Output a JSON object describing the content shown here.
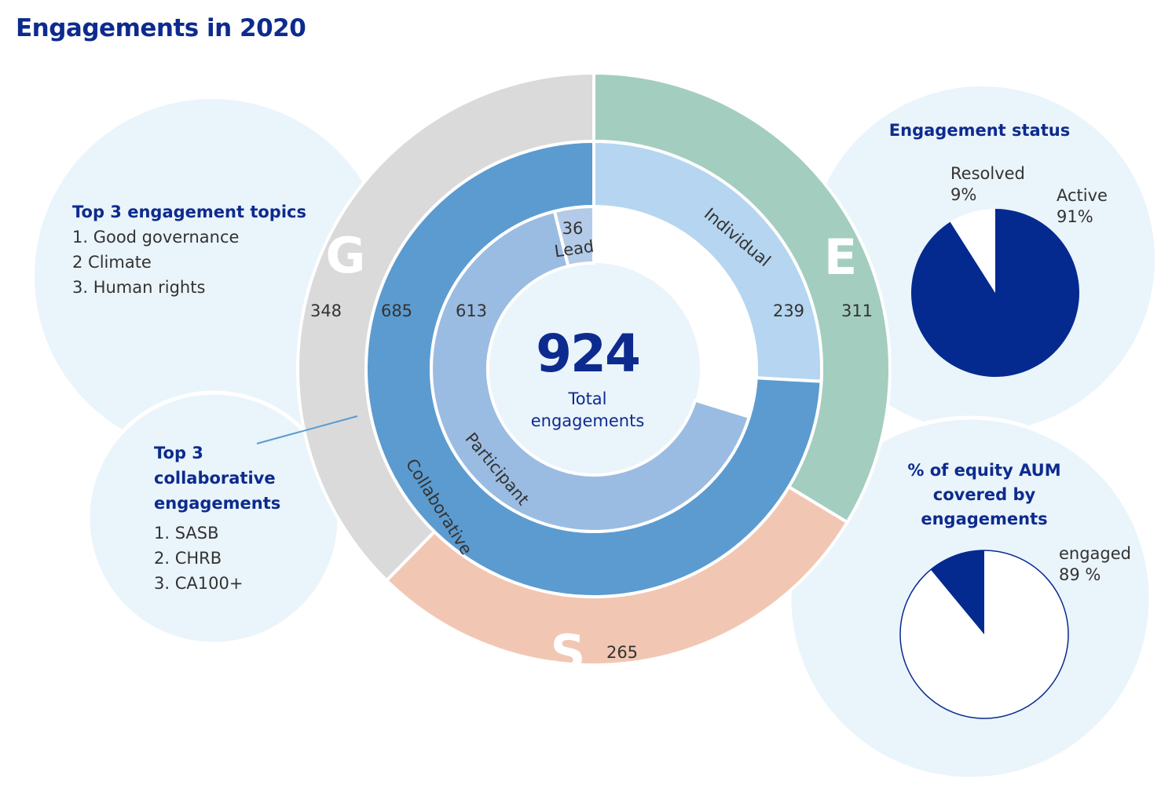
{
  "title": "Engagements in 2020",
  "topics": {
    "title": "Top 3 engagement topics",
    "items": [
      "1. Good governance",
      "2  Climate",
      "3. Human rights"
    ]
  },
  "collaborative": {
    "title": "Top 3 collaborative engagements",
    "items": [
      "1. SASB",
      "2. CHRB",
      "3. CA100+"
    ]
  },
  "chart_data": [
    {
      "type": "sunburst",
      "center_value": 924,
      "center_label": "Total engagements",
      "rings": [
        {
          "direction": "clockwise",
          "categories": [
            "E",
            "S",
            "G"
          ],
          "values": [
            311,
            265,
            348
          ],
          "colors": [
            "#a3cdbf",
            "#f1c7b3",
            "#dadada"
          ]
        },
        {
          "direction": "clockwise",
          "categories": [
            "Individual",
            "Collaborative"
          ],
          "values": [
            239,
            685
          ],
          "colors": [
            "#b5d5f0",
            "#5b9bd0"
          ]
        },
        {
          "direction": "counterclockwise",
          "categories": [
            "Lead",
            "Participant"
          ],
          "values": [
            36,
            613
          ],
          "colors": [
            "#b3cbe8",
            "#9bbce2"
          ]
        }
      ]
    },
    {
      "type": "pie",
      "title": "Engagement status",
      "categories": [
        "Active",
        "Resolved"
      ],
      "values": [
        91,
        9
      ],
      "value_labels": [
        "91%",
        "9%"
      ],
      "colors": [
        "#052a8f",
        "#ffffff"
      ]
    },
    {
      "type": "pie",
      "title": "% of equity AUM covered by engagements",
      "categories": [
        "engaged",
        null
      ],
      "values": [
        89,
        11
      ],
      "value_labels": [
        "89 %",
        null
      ],
      "colors": [
        "#ffffff",
        "#052a8f"
      ],
      "edgecolor": "#052a8f"
    }
  ]
}
